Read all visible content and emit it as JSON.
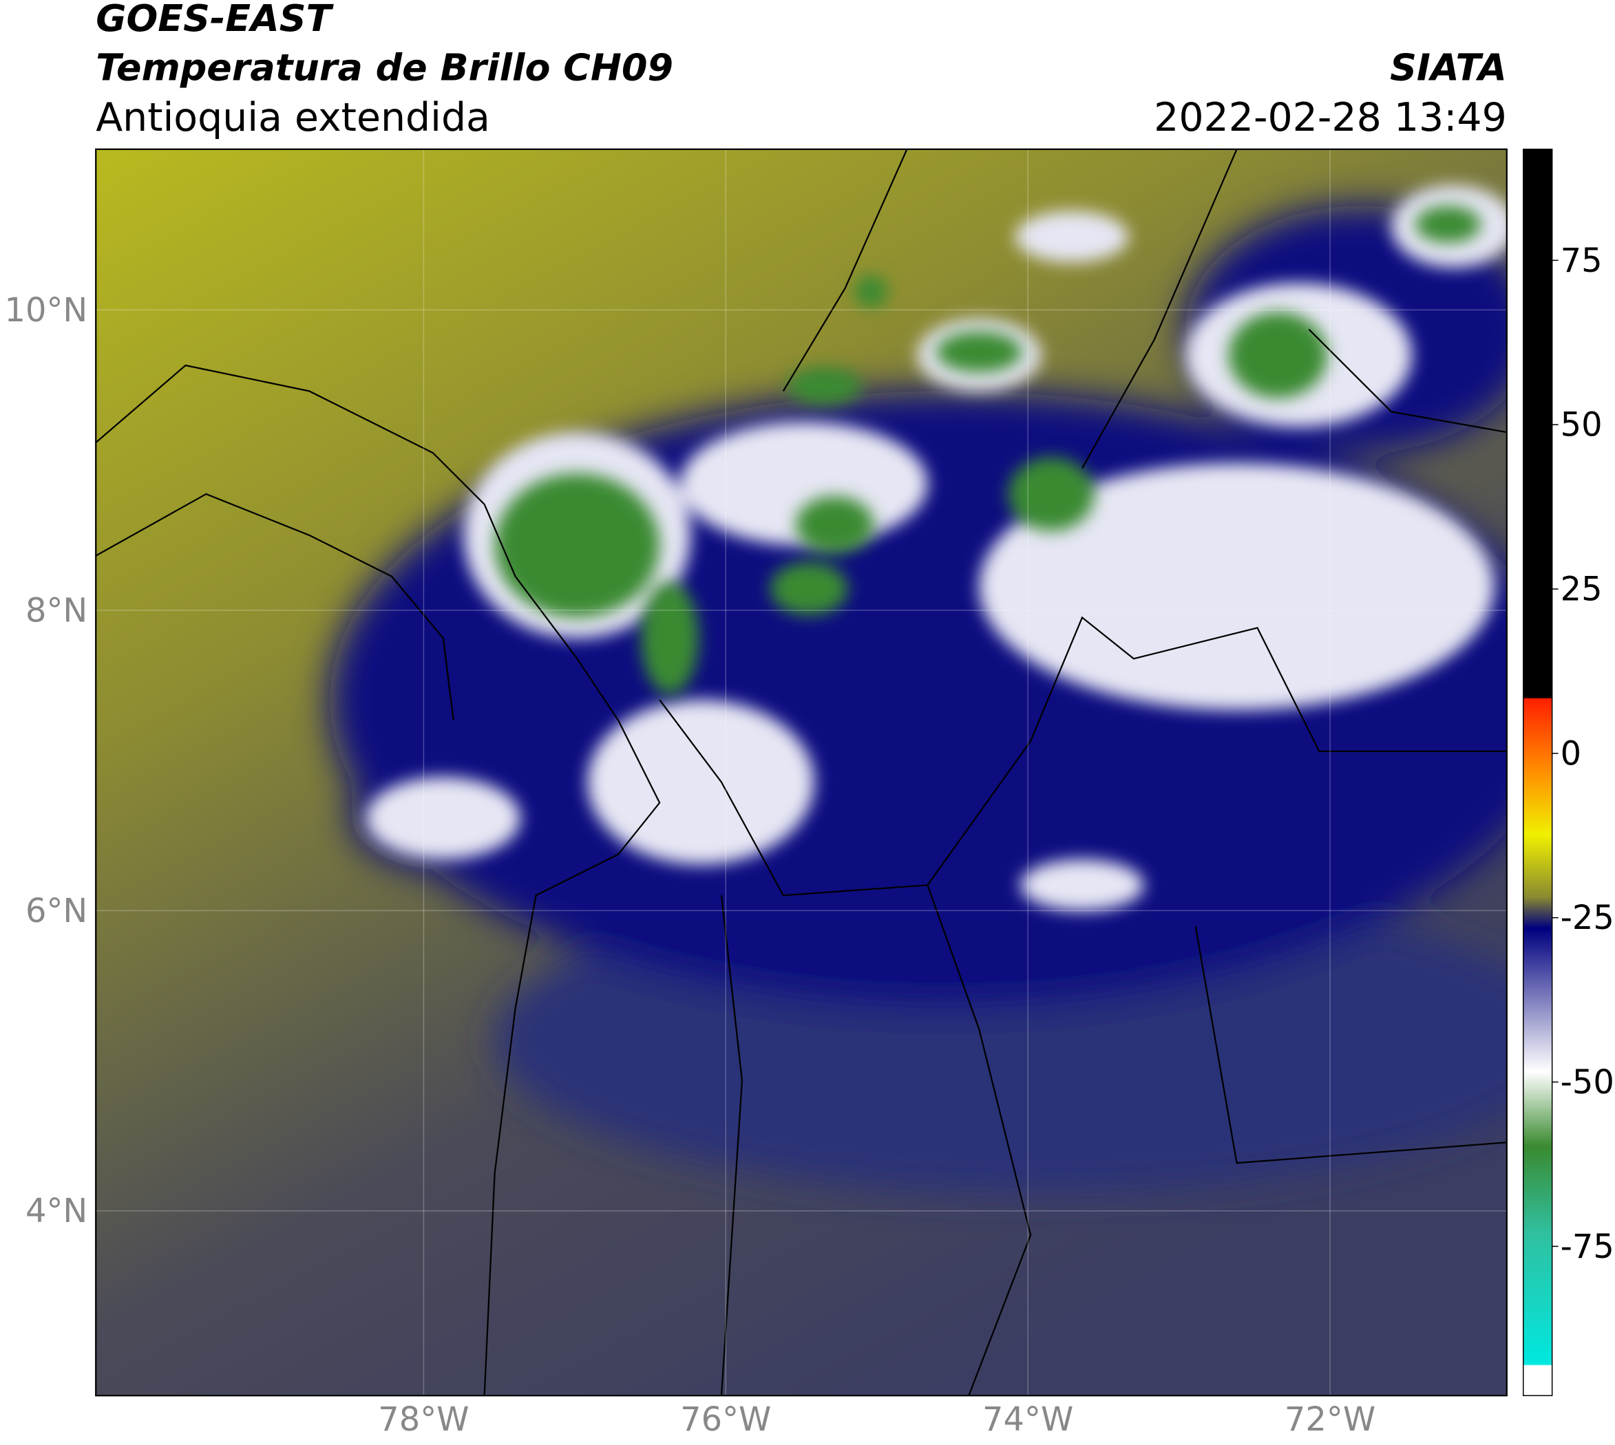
{
  "header": {
    "title_1": "GOES-EAST",
    "title_2": "Temperatura de Brillo CH09",
    "subtitle": "Antioquia extendida",
    "source": "SIATA",
    "datetime": "2022-02-28 13:49"
  },
  "map": {
    "latlim": [
      2.77,
      11.07
    ],
    "lonlim": [
      -80.17,
      -70.83
    ],
    "lat_ticks": [
      {
        "value": 10,
        "label": "10°N"
      },
      {
        "value": 8,
        "label": "8°N"
      },
      {
        "value": 6,
        "label": "6°N"
      },
      {
        "value": 4,
        "label": "4°N"
      }
    ],
    "lon_ticks": [
      {
        "value": -78,
        "label": "78°W"
      },
      {
        "value": -76,
        "label": "76°W"
      },
      {
        "value": -74,
        "label": "74°W"
      },
      {
        "value": -72,
        "label": "72°W"
      }
    ]
  },
  "colorbar": {
    "lim": [
      -97.7,
      91.9
    ],
    "ticks": [
      75,
      50,
      25,
      0,
      -25,
      -50,
      -75
    ]
  }
}
